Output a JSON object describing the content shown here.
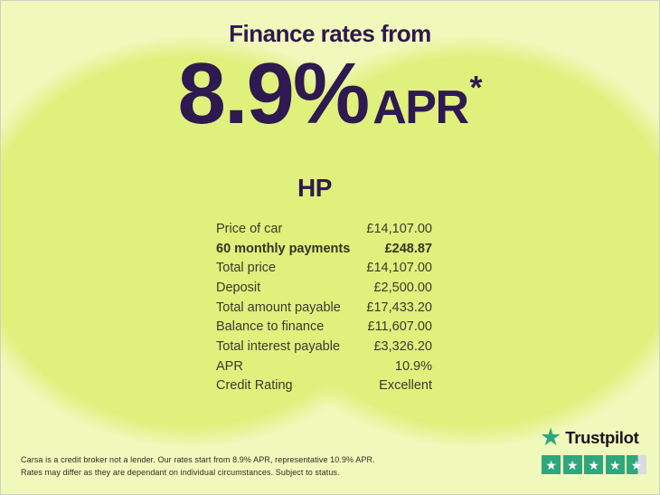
{
  "promo": {
    "title": "Finance rates from",
    "rate": "8.9%",
    "apr_label": "APR",
    "asterisk": "*"
  },
  "finance": {
    "product_title": "HP",
    "rows": [
      {
        "label": "Price of car",
        "value": "£14,107.00"
      },
      {
        "label": "60 monthly payments",
        "value": "£248.87"
      },
      {
        "label": "Total price",
        "value": "£14,107.00"
      },
      {
        "label": "Deposit",
        "value": "£2,500.00"
      },
      {
        "label": "Total amount payable",
        "value": "£17,433.20"
      },
      {
        "label": "Balance to finance",
        "value": "£11,607.00"
      },
      {
        "label": "Total interest payable",
        "value": "£3,326.20"
      },
      {
        "label": "APR",
        "value": "10.9%"
      },
      {
        "label": "Credit Rating",
        "value": "Excellent"
      }
    ]
  },
  "disclaimer": {
    "line1": "Carsa is a credit broker not a lender. Our rates start from 8.9% APR, representative 10.9% APR.",
    "line2": "Rates may differ as they are dependant on individual circumstances. Subject to status."
  },
  "trustpilot": {
    "brand": "Trustpilot",
    "star_glyph": "★",
    "full_star_boxes": 4,
    "partial_star_boxes": 1,
    "rating": "4.5"
  },
  "colors": {
    "accent_purple": "#2e1950",
    "lime_background": "#f0f8bb",
    "lime_blob": "#e0f07d",
    "trustpilot_green": "#2fa77c",
    "partial_star_gray": "#d8dbe2"
  }
}
